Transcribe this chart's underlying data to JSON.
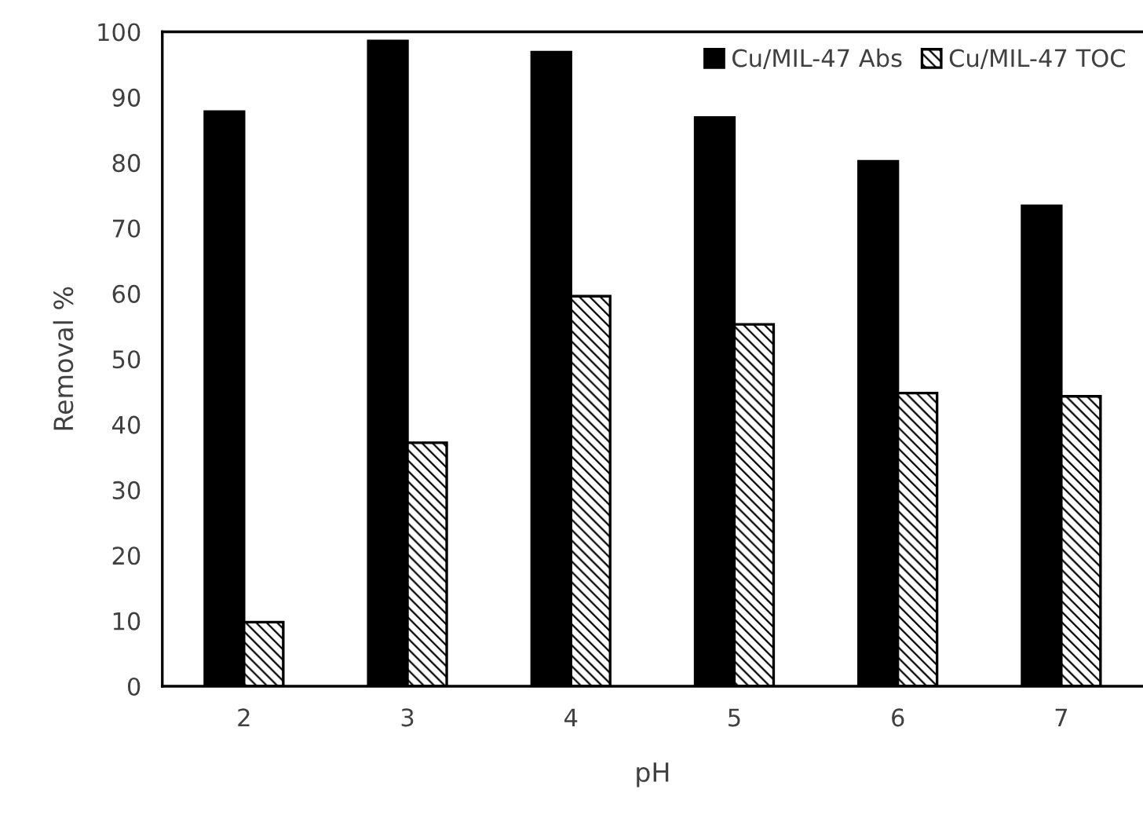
{
  "chart_data": {
    "type": "bar",
    "xlabel": "pH",
    "ylabel": "Removal %",
    "categories": [
      "2",
      "3",
      "4",
      "5",
      "6",
      "7"
    ],
    "series": [
      {
        "name": "Cu/MIL-47 Abs",
        "color": "#000000",
        "values": [
          87.8,
          98.6,
          96.9,
          86.9,
          80.2,
          73.4
        ]
      },
      {
        "name": "Cu/MIL-47 TOC",
        "color": "#000000",
        "values": [
          9.8,
          37.2,
          59.6,
          55.3,
          44.8,
          44.3
        ]
      }
    ],
    "ylim": [
      0,
      100
    ],
    "yticks": [
      0,
      10,
      20,
      30,
      40,
      50,
      60,
      70,
      80,
      90,
      100
    ],
    "grid": false,
    "legend": "top right"
  }
}
